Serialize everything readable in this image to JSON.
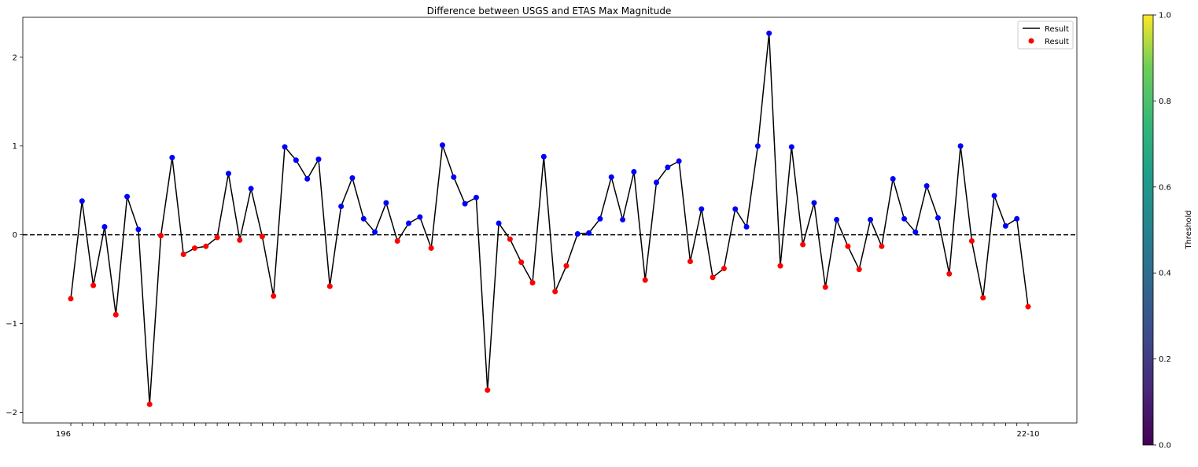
{
  "chart_data": {
    "type": "line",
    "title": "Difference between USGS and ETAS Max Magnitude",
    "xlabel": "",
    "ylabel": "",
    "ylim": [
      -2.12,
      2.45
    ],
    "yticks": [
      -2,
      -1,
      0,
      1,
      2
    ],
    "ytick_labels": [
      "−2",
      "−1",
      "0",
      "1",
      "2"
    ],
    "grid": false,
    "reference_line_y": 0,
    "x_tick_labels_note": "x tick labels are dates in the original but overlap and are illegible; only the leading '196' and trailing '22-10' are readable",
    "x_tick_first": "196",
    "x_tick_last": "22-10",
    "series": [
      {
        "name": "Result",
        "values": [
          -0.72,
          0.38,
          -0.57,
          0.09,
          -0.9,
          0.43,
          0.06,
          -1.91,
          -0.01,
          0.87,
          -0.22,
          -0.15,
          -0.13,
          -0.03,
          0.69,
          -0.06,
          0.52,
          -0.02,
          -0.69,
          0.99,
          0.84,
          0.63,
          0.85,
          -0.58,
          0.32,
          0.64,
          0.18,
          0.03,
          0.36,
          -0.07,
          0.13,
          0.2,
          -0.15,
          1.01,
          0.65,
          0.35,
          0.42,
          -1.75,
          0.13,
          -0.05,
          -0.31,
          -0.54,
          0.88,
          -0.64,
          -0.35,
          0.01,
          0.02,
          0.18,
          0.65,
          0.17,
          0.71,
          -0.51,
          0.59,
          0.76,
          0.83,
          -0.3,
          0.29,
          -0.48,
          -0.38,
          0.29,
          0.09,
          1.0,
          2.27,
          -0.35,
          0.99,
          -0.11,
          0.36,
          -0.59,
          0.17,
          -0.13,
          -0.39,
          0.17,
          -0.13,
          0.63,
          0.18,
          0.03,
          0.55,
          0.19,
          -0.44,
          1.0,
          -0.07,
          -0.71,
          0.44,
          0.1,
          0.18,
          -0.81
        ]
      }
    ],
    "legend": {
      "position": "top-right",
      "entries": [
        {
          "label": "Result",
          "kind": "line",
          "color": "#000000"
        },
        {
          "label": "Result",
          "kind": "marker",
          "color": "#ff0000"
        }
      ]
    },
    "point_colors": {
      "positive": "#0000ff",
      "negative": "#ff0000"
    },
    "colorbar": {
      "label": "Threshold",
      "ticks": [
        "0.0",
        "0.2",
        "0.4",
        "0.6",
        "0.8",
        "1.0"
      ],
      "colormap": "viridis"
    }
  }
}
